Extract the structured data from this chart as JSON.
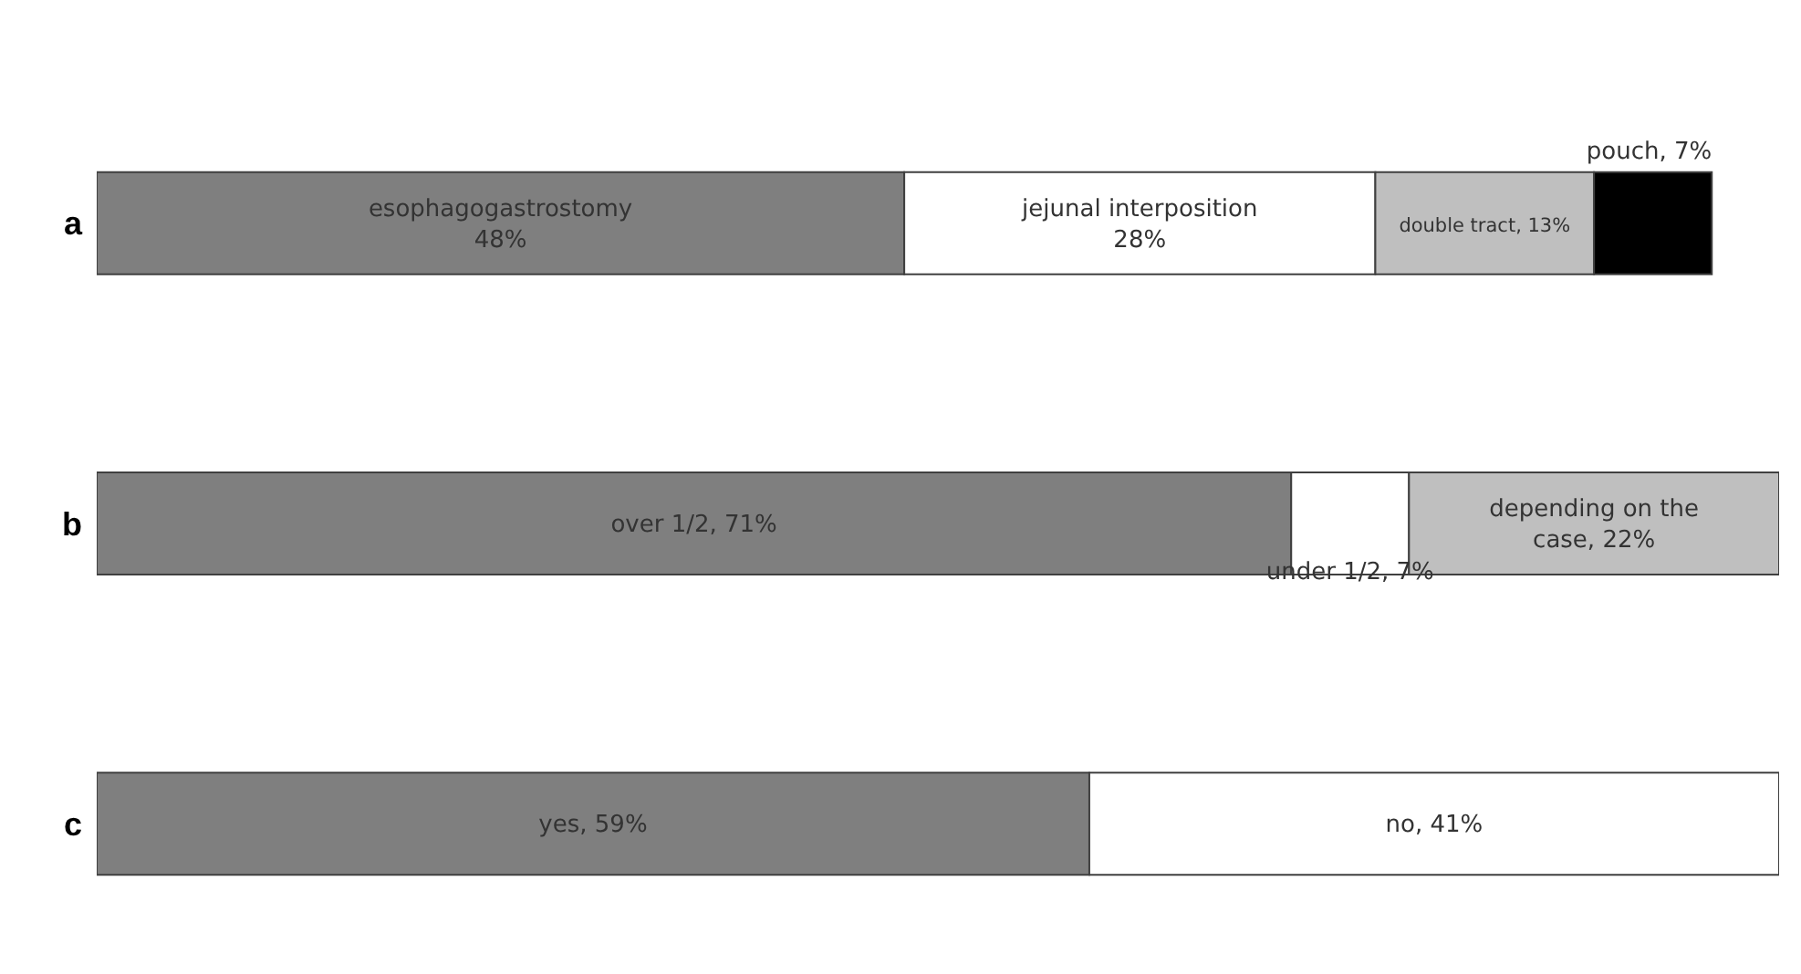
{
  "chart_data": {
    "type": "bar",
    "orientation": "horizontal",
    "stacked": true,
    "categories": [
      "a",
      "b",
      "c"
    ],
    "xlim": [
      0,
      100
    ],
    "tick_labels": "y",
    "legend": false,
    "grid": false,
    "series": [
      {
        "color": "#7f7f7f",
        "values": [
          48,
          71,
          59
        ],
        "value_labels": [
          "esophagogastrostomy\n48%",
          "over 1/2, 71%",
          "yes, 59%"
        ]
      },
      {
        "color": "#ffffff",
        "values": [
          28,
          7,
          41
        ],
        "value_labels": [
          "jejunal interposition\n28%",
          "under 1/2, 7%",
          "no, 41%"
        ]
      },
      {
        "color": "#bfbfbf",
        "values": [
          13,
          22,
          null
        ],
        "value_labels": [
          "double tract, 13%",
          "depending on the\ncase, 22%",
          null
        ]
      },
      {
        "color": "#000000",
        "values": [
          7,
          null,
          null
        ],
        "value_labels": [
          "pouch, 7%",
          null,
          null
        ]
      }
    ]
  }
}
